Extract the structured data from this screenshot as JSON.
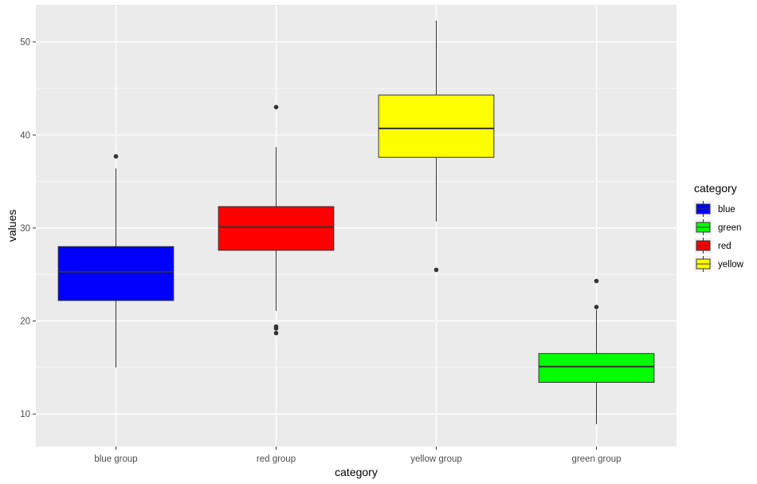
{
  "chart_data": {
    "type": "box",
    "xlabel": "category",
    "ylabel": "values",
    "ylim": [
      6.5,
      54
    ],
    "yticks": [
      10,
      20,
      30,
      40,
      50
    ],
    "grid": true,
    "panel_background": "#ebebeb",
    "categories": [
      "blue group",
      "red group",
      "yellow group",
      "green group"
    ],
    "boxes": [
      {
        "category": "blue group",
        "fill_key": "blue",
        "whisker_low": 15.0,
        "q1": 22.2,
        "median": 25.3,
        "q3": 28.0,
        "whisker_high": 36.4,
        "outliers": [
          37.7
        ]
      },
      {
        "category": "red group",
        "fill_key": "red",
        "whisker_low": 21.1,
        "q1": 27.6,
        "median": 30.1,
        "q3": 32.3,
        "whisker_high": 38.7,
        "outliers": [
          43.0,
          19.4,
          19.2,
          18.7
        ]
      },
      {
        "category": "yellow group",
        "fill_key": "yellow",
        "whisker_low": 30.7,
        "q1": 37.6,
        "median": 40.7,
        "q3": 44.3,
        "whisker_high": 52.3,
        "outliers": [
          25.5
        ]
      },
      {
        "category": "green group",
        "fill_key": "green",
        "whisker_low": 8.9,
        "q1": 13.4,
        "median": 15.1,
        "q3": 16.5,
        "whisker_high": 21.2,
        "outliers": [
          24.3,
          21.5
        ]
      }
    ],
    "legend": {
      "title": "category",
      "placement": "right",
      "entries": [
        {
          "label": "blue",
          "color": "#0000ff"
        },
        {
          "label": "green",
          "color": "#00ff00"
        },
        {
          "label": "red",
          "color": "#ff0000"
        },
        {
          "label": "yellow",
          "color": "#ffff00"
        }
      ]
    }
  }
}
